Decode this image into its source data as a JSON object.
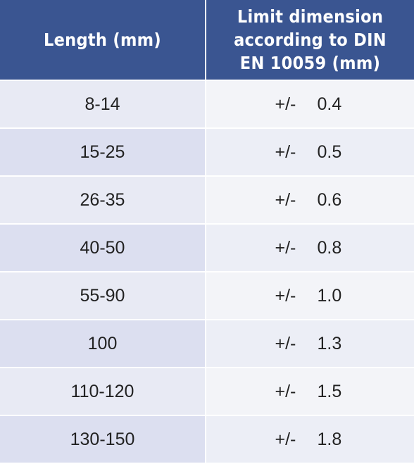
{
  "table": {
    "headers": {
      "length": "Length (mm)",
      "limit": "Limit dimension according to DIN EN 10059 (mm)"
    },
    "rows": [
      {
        "length": "8-14",
        "sign": "+/-",
        "value": "0.4"
      },
      {
        "length": "15-25",
        "sign": "+/-",
        "value": "0.5"
      },
      {
        "length": "26-35",
        "sign": "+/-",
        "value": "0.6"
      },
      {
        "length": "40-50",
        "sign": "+/-",
        "value": "0.8"
      },
      {
        "length": "55-90",
        "sign": "+/-",
        "value": "1.0"
      },
      {
        "length": "100",
        "sign": "+/-",
        "value": "1.3"
      },
      {
        "length": "110-120",
        "sign": "+/-",
        "value": "1.5"
      },
      {
        "length": "130-150",
        "sign": "+/-",
        "value": "1.8"
      }
    ]
  },
  "colors": {
    "header_bg": "#3a5591",
    "header_text": "#ffffff",
    "row_alt_1": "#e8eaf4",
    "row_alt_2": "#dcdff0"
  }
}
